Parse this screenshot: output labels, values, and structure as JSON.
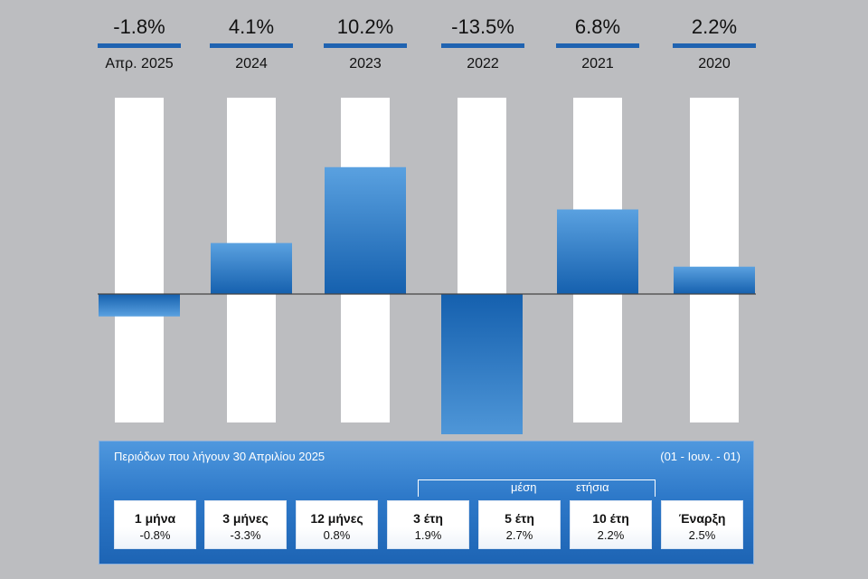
{
  "chart_data": {
    "type": "bar",
    "categories": [
      "Απρ. 2025",
      "2024",
      "2023",
      "2022",
      "2021",
      "2020"
    ],
    "values": [
      -1.8,
      4.1,
      10.2,
      -13.5,
      6.8,
      2.2
    ],
    "value_labels": [
      "-1.8%",
      "4.1%",
      "10.2%",
      "-13.5%",
      "6.8%",
      "2.2%"
    ],
    "title": "",
    "xlabel": "",
    "ylabel": "",
    "ylim": [
      -16,
      16
    ],
    "grid": false,
    "colors": {
      "bar_top": "#5aa1e0",
      "bar_bottom": "#1560ae",
      "backdrop": "#ffffff",
      "header_bar": "#1f63b1",
      "background": "#bcbdc0"
    }
  },
  "panel": {
    "title": "Περιόδων που λήγουν 30 Απριλίου 2025",
    "note": "(01 - Ιουν. - 01)",
    "avg_label_1": "μέση",
    "avg_label_2": "ετήσια",
    "periods": [
      {
        "label": "1 μήνα",
        "value": "-0.8%"
      },
      {
        "label": "3 μήνες",
        "value": "-3.3%"
      },
      {
        "label": "12 μήνες",
        "value": "0.8%"
      },
      {
        "label": "3 έτη",
        "value": "1.9%"
      },
      {
        "label": "5 έτη",
        "value": "2.7%"
      },
      {
        "label": "10 έτη",
        "value": "2.2%"
      },
      {
        "label": "Έναρξη",
        "value": "2.5%"
      }
    ]
  }
}
